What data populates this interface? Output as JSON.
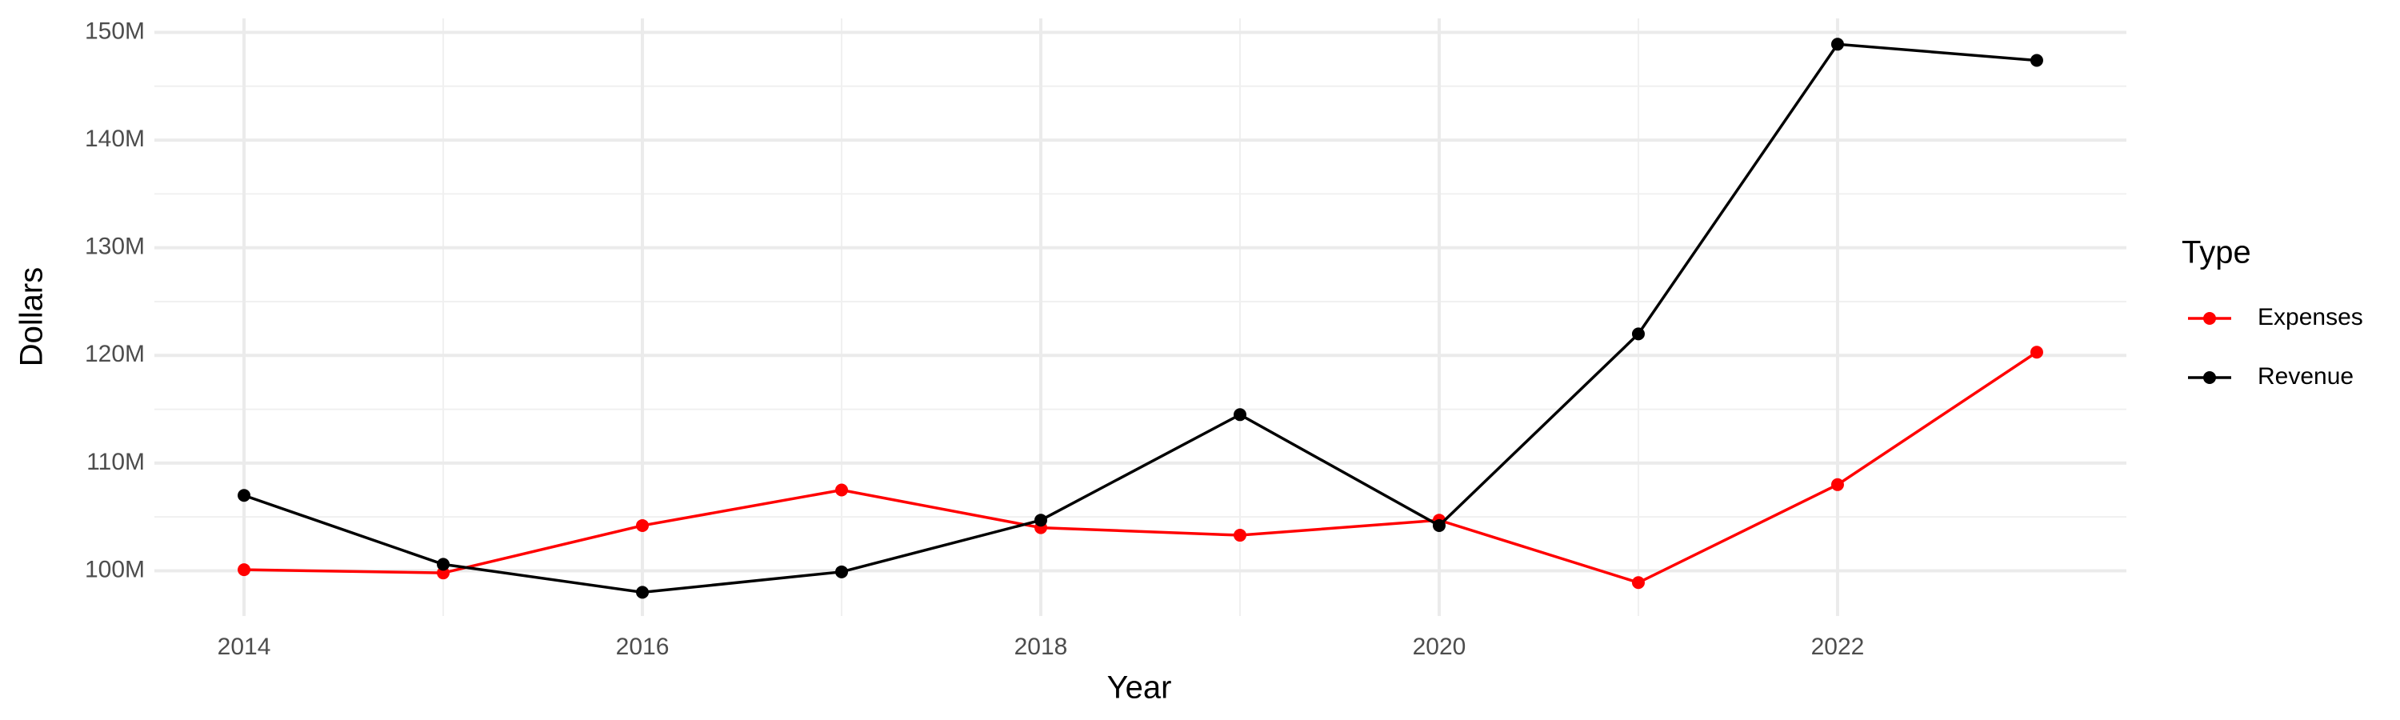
{
  "chart_data": {
    "type": "line",
    "x": [
      2014,
      2015,
      2016,
      2017,
      2018,
      2019,
      2020,
      2021,
      2022,
      2023
    ],
    "series": [
      {
        "name": "Expenses",
        "color": "#ff0000",
        "values": [
          100100000,
          99800000,
          104200000,
          107500000,
          104000000,
          103300000,
          104700000,
          98900000,
          108000000,
          120300000
        ]
      },
      {
        "name": "Revenue",
        "color": "#000000",
        "values": [
          107000000,
          100600000,
          98000000,
          99900000,
          104700000,
          114500000,
          104200000,
          122000000,
          148900000,
          147400000
        ]
      }
    ],
    "x_label": "Year",
    "y_label": "Dollars",
    "legend_title": "Type",
    "legend": "right",
    "grid": true,
    "xlim": [
      2013.55,
      2023.45
    ],
    "xticks": [
      2014,
      2016,
      2018,
      2020,
      2022
    ],
    "ylim": [
      95800000,
      151300000
    ],
    "yticks": [
      {
        "value": 100000000,
        "label": "100M"
      },
      {
        "value": 110000000,
        "label": "110M"
      },
      {
        "value": 120000000,
        "label": "120M"
      },
      {
        "value": 130000000,
        "label": "130M"
      },
      {
        "value": 140000000,
        "label": "140M"
      },
      {
        "value": 150000000,
        "label": "150M"
      }
    ]
  }
}
